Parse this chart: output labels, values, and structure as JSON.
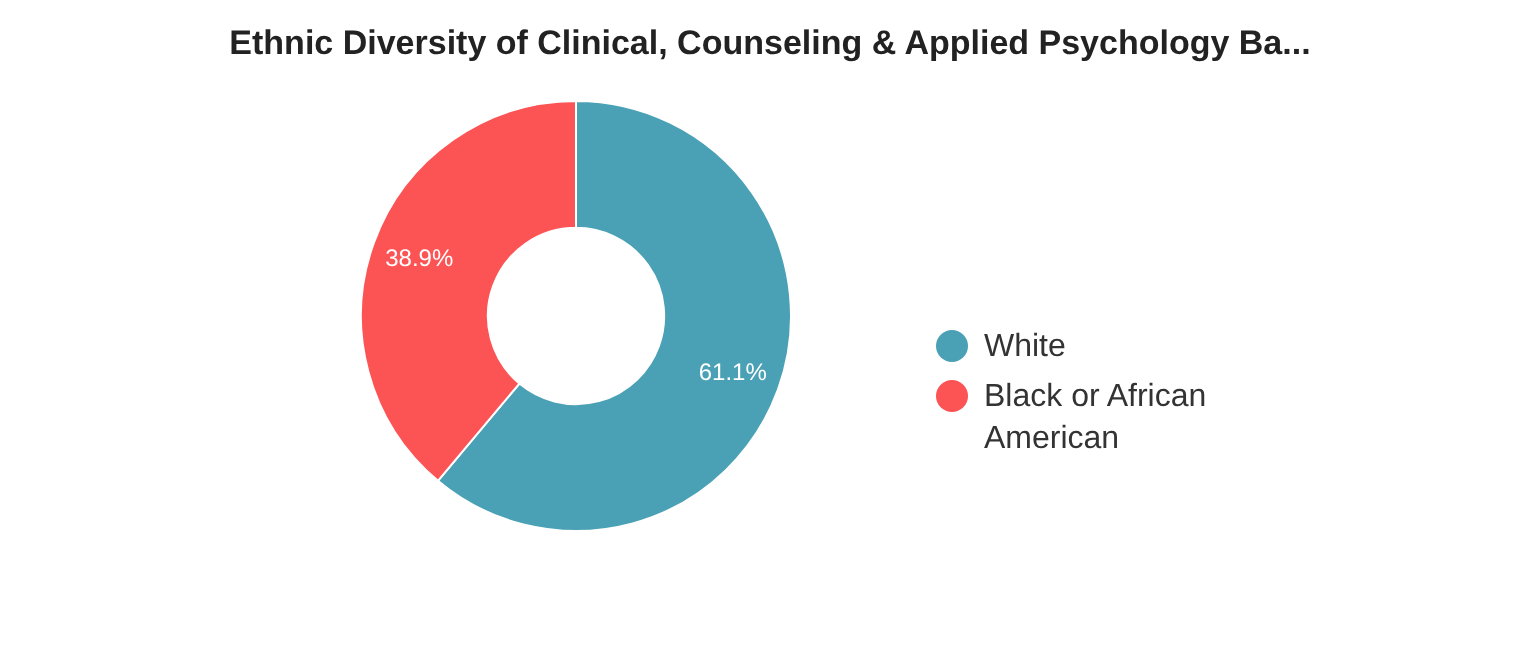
{
  "chart_data": {
    "type": "donut",
    "title": "Ethnic Diversity of Clinical, Counseling & Applied Psychology Ba...",
    "categories": [
      "White",
      "Black or African American"
    ],
    "values": [
      61.1,
      38.9
    ],
    "value_labels": [
      "61.1%",
      "38.9%"
    ],
    "colors": [
      "#4aa1b5",
      "#fc5455"
    ],
    "legend": "right"
  }
}
